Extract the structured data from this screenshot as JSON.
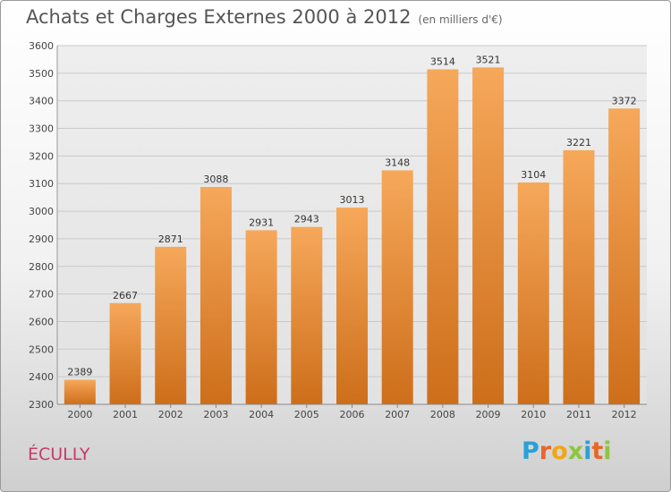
{
  "header": {
    "title": "Achats et Charges Externes 2000 à 2012",
    "subtitle": "(en milliers d'€)"
  },
  "footer": {
    "commune": "ÉCULLY",
    "logo": [
      "P",
      "r",
      "o",
      "x",
      "i",
      "t",
      "i"
    ],
    "logo_colors": [
      "#2aa0d8",
      "#e9662b",
      "#f2a516",
      "#8cc63f",
      "#2aa0d8",
      "#e9662b",
      "#8cc63f"
    ]
  },
  "colors": {
    "bar_top": "#f6a85a",
    "bar_bottom": "#cd6e1a",
    "grid": "#c9c9c9"
  },
  "chart_data": {
    "type": "bar",
    "categories": [
      "2000",
      "2001",
      "2002",
      "2003",
      "2004",
      "2005",
      "2006",
      "2007",
      "2008",
      "2009",
      "2010",
      "2011",
      "2012"
    ],
    "values": [
      2389,
      2667,
      2871,
      3088,
      2931,
      2943,
      3013,
      3148,
      3514,
      3521,
      3104,
      3221,
      3372
    ],
    "ylim": [
      2300,
      3600
    ],
    "yticks": [
      2300,
      2400,
      2500,
      2600,
      2700,
      2800,
      2900,
      3000,
      3100,
      3200,
      3300,
      3400,
      3500,
      3600
    ],
    "grid": true
  }
}
